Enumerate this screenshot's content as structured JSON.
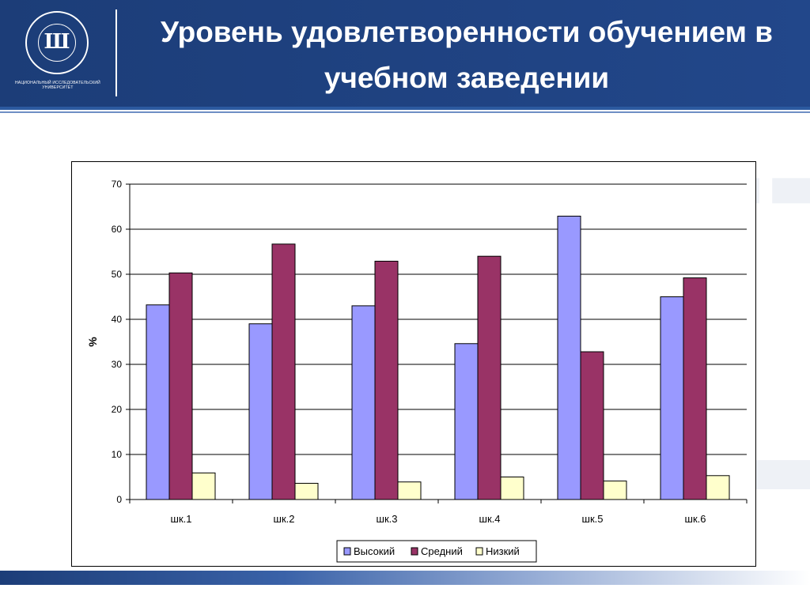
{
  "header": {
    "title": "Уровень удовлетворенности обучением в учебном заведении",
    "logo_name": "hse-logo",
    "logo_letter": "Ш",
    "logo_caption": "НАЦИОНАЛЬНЫЙ ИССЛЕДОВАТЕЛЬСКИЙ УНИВЕРСИТЕТ"
  },
  "chart_data": {
    "type": "bar",
    "title": "",
    "xlabel": "",
    "ylabel": "%",
    "ylim": [
      0,
      70
    ],
    "yticks": [
      0,
      10,
      20,
      30,
      40,
      50,
      60,
      70
    ],
    "grid": true,
    "legend_position": "bottom",
    "categories": [
      "шк.1",
      "шк.2",
      "шк.3",
      "шк.4",
      "шк.5",
      "шк.6"
    ],
    "series": [
      {
        "name": "Высокий",
        "color": "#9999ff",
        "values": [
          43.2,
          39.0,
          43.0,
          34.6,
          62.9,
          45.0
        ]
      },
      {
        "name": "Средний",
        "color": "#993366",
        "values": [
          50.3,
          56.7,
          52.9,
          54.0,
          32.8,
          49.2
        ]
      },
      {
        "name": "Низкий",
        "color": "#ffffcc",
        "values": [
          5.9,
          3.6,
          3.9,
          5.0,
          4.1,
          5.3
        ]
      }
    ]
  }
}
